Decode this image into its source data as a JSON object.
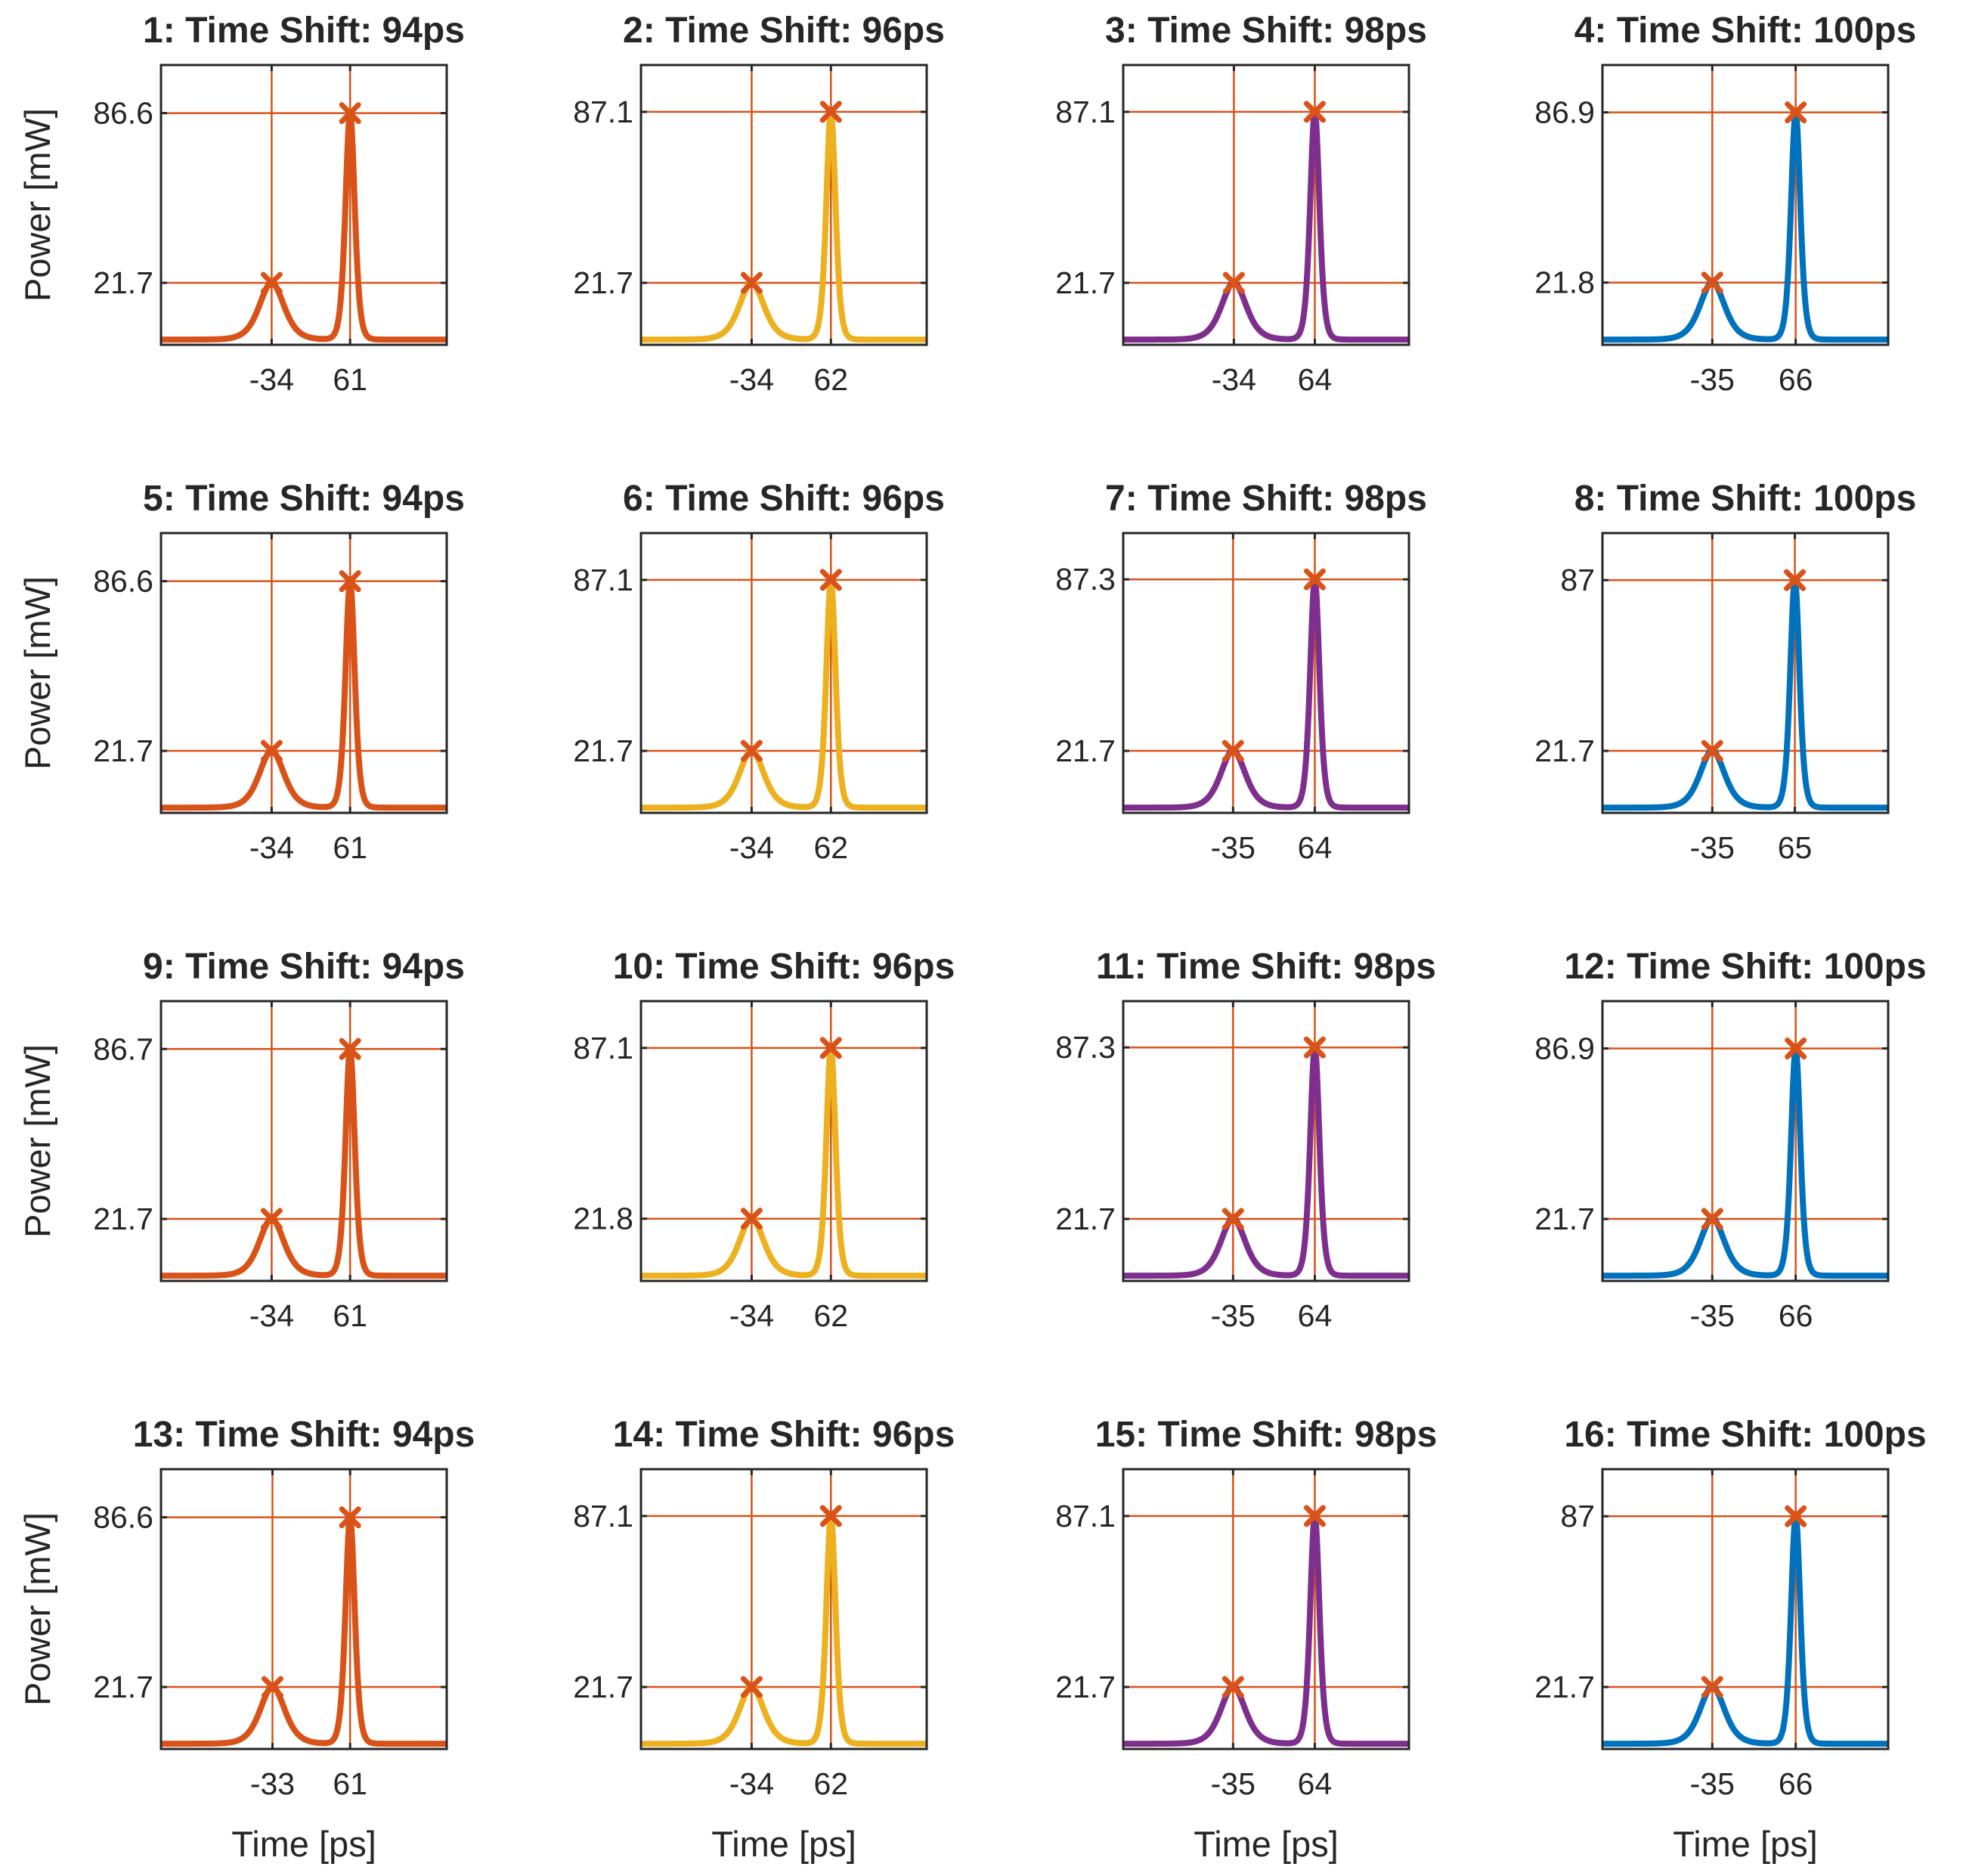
{
  "figure": {
    "ylabel": "Power [mW]",
    "xlabel": "Time [ps]"
  },
  "colors": {
    "series": [
      "#D95319",
      "#EDB120",
      "#7E2F8E",
      "#0072BD"
    ],
    "marker": "#D95319",
    "guide": "#D95319",
    "axes": "#262626"
  },
  "chart_data": [
    {
      "type": "line",
      "title": "1: Time Shift: 94ps",
      "series_color": 0,
      "peaks": [
        {
          "t": -34,
          "p": 21.7
        },
        {
          "t": 61,
          "p": 86.6
        }
      ],
      "xtick_labels": [
        "-34",
        "61"
      ],
      "ytick_labels": [
        "21.7",
        "86.6"
      ],
      "xlim": [
        -168,
        178
      ],
      "ylim": [
        -2,
        105
      ],
      "marker": "x"
    },
    {
      "type": "line",
      "title": "2: Time Shift: 96ps",
      "series_color": 1,
      "peaks": [
        {
          "t": -34,
          "p": 21.7
        },
        {
          "t": 62,
          "p": 87.1
        }
      ],
      "xtick_labels": [
        "-34",
        "62"
      ],
      "ytick_labels": [
        "21.7",
        "87.1"
      ],
      "xlim": [
        -168,
        178
      ],
      "ylim": [
        -2,
        105
      ],
      "marker": "x"
    },
    {
      "type": "line",
      "title": "3: Time Shift: 98ps",
      "series_color": 2,
      "peaks": [
        {
          "t": -34,
          "p": 21.7
        },
        {
          "t": 64,
          "p": 87.1
        }
      ],
      "xtick_labels": [
        "-34",
        "64"
      ],
      "ytick_labels": [
        "21.7",
        "87.1"
      ],
      "xlim": [
        -168,
        178
      ],
      "ylim": [
        -2,
        105
      ],
      "marker": "x"
    },
    {
      "type": "line",
      "title": "4: Time Shift: 100ps",
      "series_color": 3,
      "peaks": [
        {
          "t": -35,
          "p": 21.8
        },
        {
          "t": 66,
          "p": 86.9
        }
      ],
      "xtick_labels": [
        "-35",
        "66"
      ],
      "ytick_labels": [
        "21.8",
        "86.9"
      ],
      "xlim": [
        -168,
        178
      ],
      "ylim": [
        -2,
        105
      ],
      "marker": "x"
    },
    {
      "type": "line",
      "title": "5: Time Shift: 94ps",
      "series_color": 0,
      "peaks": [
        {
          "t": -34,
          "p": 21.7
        },
        {
          "t": 61,
          "p": 86.6
        }
      ],
      "xtick_labels": [
        "-34",
        "61"
      ],
      "ytick_labels": [
        "21.7",
        "86.6"
      ],
      "xlim": [
        -168,
        178
      ],
      "ylim": [
        -2,
        105
      ],
      "marker": "x"
    },
    {
      "type": "line",
      "title": "6: Time Shift: 96ps",
      "series_color": 1,
      "peaks": [
        {
          "t": -34,
          "p": 21.7
        },
        {
          "t": 62,
          "p": 87.1
        }
      ],
      "xtick_labels": [
        "-34",
        "62"
      ],
      "ytick_labels": [
        "21.7",
        "87.1"
      ],
      "xlim": [
        -168,
        178
      ],
      "ylim": [
        -2,
        105
      ],
      "marker": "x"
    },
    {
      "type": "line",
      "title": "7: Time Shift: 98ps",
      "series_color": 2,
      "peaks": [
        {
          "t": -35,
          "p": 21.7
        },
        {
          "t": 64,
          "p": 87.3
        }
      ],
      "xtick_labels": [
        "-35",
        "64"
      ],
      "ytick_labels": [
        "21.7",
        "87.3"
      ],
      "xlim": [
        -168,
        178
      ],
      "ylim": [
        -2,
        105
      ],
      "marker": "x"
    },
    {
      "type": "line",
      "title": "8: Time Shift: 100ps",
      "series_color": 3,
      "peaks": [
        {
          "t": -35,
          "p": 21.7
        },
        {
          "t": 65,
          "p": 87
        }
      ],
      "xtick_labels": [
        "-35",
        "65"
      ],
      "ytick_labels": [
        "21.7",
        "87"
      ],
      "xlim": [
        -168,
        178
      ],
      "ylim": [
        -2,
        105
      ],
      "marker": "x"
    },
    {
      "type": "line",
      "title": "9: Time Shift: 94ps",
      "series_color": 0,
      "peaks": [
        {
          "t": -34,
          "p": 21.7
        },
        {
          "t": 61,
          "p": 86.7
        }
      ],
      "xtick_labels": [
        "-34",
        "61"
      ],
      "ytick_labels": [
        "21.7",
        "86.7"
      ],
      "xlim": [
        -168,
        178
      ],
      "ylim": [
        -2,
        105
      ],
      "marker": "x"
    },
    {
      "type": "line",
      "title": "10: Time Shift: 96ps",
      "series_color": 1,
      "peaks": [
        {
          "t": -34,
          "p": 21.8
        },
        {
          "t": 62,
          "p": 87.1
        }
      ],
      "xtick_labels": [
        "-34",
        "62"
      ],
      "ytick_labels": [
        "21.8",
        "87.1"
      ],
      "xlim": [
        -168,
        178
      ],
      "ylim": [
        -2,
        105
      ],
      "marker": "x"
    },
    {
      "type": "line",
      "title": "11: Time Shift: 98ps",
      "series_color": 2,
      "peaks": [
        {
          "t": -35,
          "p": 21.7
        },
        {
          "t": 64,
          "p": 87.3
        }
      ],
      "xtick_labels": [
        "-35",
        "64"
      ],
      "ytick_labels": [
        "21.7",
        "87.3"
      ],
      "xlim": [
        -168,
        178
      ],
      "ylim": [
        -2,
        105
      ],
      "marker": "x"
    },
    {
      "type": "line",
      "title": "12: Time Shift: 100ps",
      "series_color": 3,
      "peaks": [
        {
          "t": -35,
          "p": 21.7
        },
        {
          "t": 66,
          "p": 86.9
        }
      ],
      "xtick_labels": [
        "-35",
        "66"
      ],
      "ytick_labels": [
        "21.7",
        "86.9"
      ],
      "xlim": [
        -168,
        178
      ],
      "ylim": [
        -2,
        105
      ],
      "marker": "x"
    },
    {
      "type": "line",
      "title": "13: Time Shift: 94ps",
      "series_color": 0,
      "peaks": [
        {
          "t": -33,
          "p": 21.7
        },
        {
          "t": 61,
          "p": 86.6
        }
      ],
      "xtick_labels": [
        "-33",
        "61"
      ],
      "ytick_labels": [
        "21.7",
        "86.6"
      ],
      "xlim": [
        -168,
        178
      ],
      "ylim": [
        -2,
        105
      ],
      "marker": "x"
    },
    {
      "type": "line",
      "title": "14: Time Shift: 96ps",
      "series_color": 1,
      "peaks": [
        {
          "t": -34,
          "p": 21.7
        },
        {
          "t": 62,
          "p": 87.1
        }
      ],
      "xtick_labels": [
        "-34",
        "62"
      ],
      "ytick_labels": [
        "21.7",
        "87.1"
      ],
      "xlim": [
        -168,
        178
      ],
      "ylim": [
        -2,
        105
      ],
      "marker": "x"
    },
    {
      "type": "line",
      "title": "15: Time Shift: 98ps",
      "series_color": 2,
      "peaks": [
        {
          "t": -35,
          "p": 21.7
        },
        {
          "t": 64,
          "p": 87.1
        }
      ],
      "xtick_labels": [
        "-35",
        "64"
      ],
      "ytick_labels": [
        "21.7",
        "87.1"
      ],
      "xlim": [
        -168,
        178
      ],
      "ylim": [
        -2,
        105
      ],
      "marker": "x"
    },
    {
      "type": "line",
      "title": "16: Time Shift: 100ps",
      "series_color": 3,
      "peaks": [
        {
          "t": -35,
          "p": 21.7
        },
        {
          "t": 66,
          "p": 87
        }
      ],
      "xtick_labels": [
        "-35",
        "66"
      ],
      "ytick_labels": [
        "21.7",
        "87"
      ],
      "xlim": [
        -168,
        178
      ],
      "ylim": [
        -2,
        105
      ],
      "marker": "x"
    }
  ]
}
